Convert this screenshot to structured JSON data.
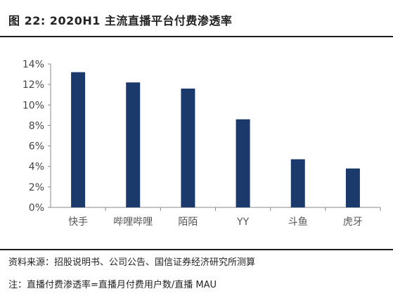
{
  "header": {
    "title": "图 22: 2020H1 主流直播平台付费渗透率"
  },
  "chart_data": {
    "type": "bar",
    "title": "",
    "xlabel": "",
    "ylabel": "",
    "categories": [
      "快手",
      "哔哩哔哩",
      "陌陌",
      "YY",
      "斗鱼",
      "虎牙"
    ],
    "values": [
      13.2,
      12.2,
      11.6,
      8.6,
      4.7,
      3.8
    ],
    "ylim": [
      0,
      14
    ],
    "yticks": [
      "0%",
      "2%",
      "4%",
      "6%",
      "8%",
      "10%",
      "12%",
      "14%"
    ],
    "grid": false,
    "legend": "none",
    "bar_color": "#1b3a6b"
  },
  "footer": {
    "source": "资料来源：招股说明书、公司公告、国信证券经济研究所测算",
    "note": "注：直播付费渗透率=直播月付费用户数/直播 MAU"
  }
}
